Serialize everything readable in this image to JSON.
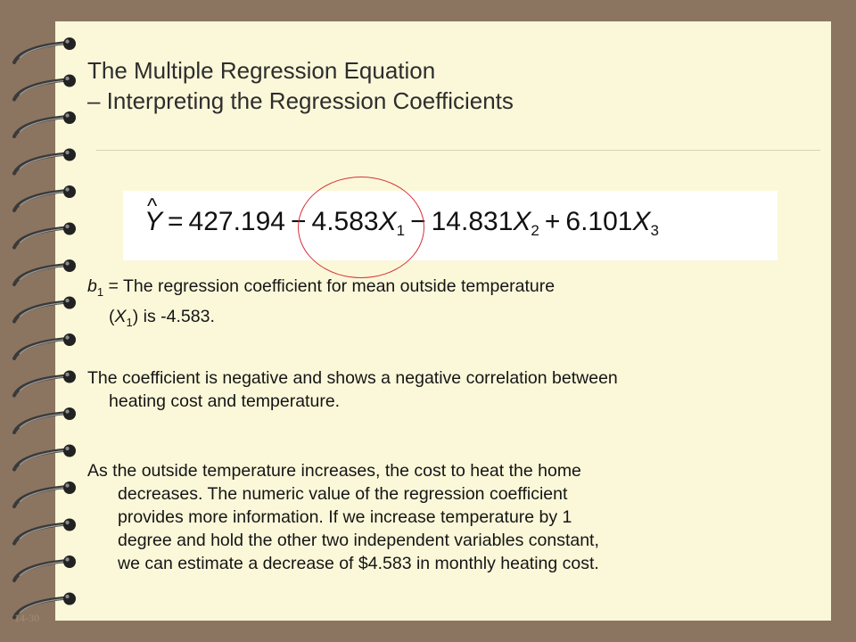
{
  "slide": {
    "title_line1": "The Multiple Regression Equation",
    "title_line2": "– Interpreting the Regression Coefficients",
    "page_number": "14-30"
  },
  "equation": {
    "lhs": "Y",
    "eq": "=",
    "intercept": "427.194",
    "op1": "−",
    "coef1": "4.583",
    "var1": "X",
    "sub1": "1",
    "op2": "−",
    "coef2": "14.831",
    "var2": "X",
    "sub2": "2",
    "op3": "+",
    "coef3": "6.101",
    "var3": "X",
    "sub3": "3",
    "hat": "^",
    "highlight_color": "#d7303a"
  },
  "body": {
    "b1_symbol": "b",
    "b1_sub": "1",
    "b1_text": " = The regression coefficient for mean outside temperature",
    "b1_line2_open": "(",
    "b1_line2_var": "X",
    "b1_line2_sub": "1",
    "b1_line2_rest": ") is -4.583.",
    "para2_line1": "The coefficient is negative and shows a negative correlation between",
    "para2_line2": "heating cost and temperature.",
    "para3_line1": "As the outside temperature increases, the cost to heat the home",
    "para3_line2": "decreases. The numeric value of the regression coefficient",
    "para3_line3": "provides more information. If we increase temperature by 1",
    "para3_line4": "degree and hold the other two independent variables constant,",
    "para3_line5": "we can estimate a decrease of $4.583 in monthly heating cost."
  },
  "colors": {
    "background": "#8b7560",
    "paper": "#fbf8d9",
    "text": "#151515"
  },
  "icons": [
    "spiral-binding-ring"
  ]
}
